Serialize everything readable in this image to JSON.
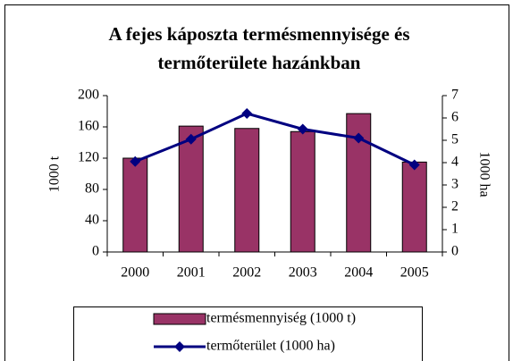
{
  "chart_data": {
    "type": "bar",
    "title": [
      "A fejes káposzta termésmennyisége és",
      "termőterülete hazánkban"
    ],
    "ylabel": "1000 t",
    "y2label": "1000 ha",
    "categories": [
      "2000",
      "2001",
      "2002",
      "2003",
      "2004",
      "2005"
    ],
    "series": [
      {
        "name": "termésmennyiség (1000 t)",
        "color": "#993366",
        "values": [
          120,
          161,
          158,
          154,
          177,
          115
        ]
      },
      {
        "name": "termőterület (1000 ha)",
        "type": "line",
        "axis": "y2",
        "color": "#000080",
        "values": [
          4.05,
          5.05,
          6.2,
          5.5,
          5.1,
          3.9
        ]
      }
    ],
    "ylim": [
      0,
      200
    ],
    "yticks": [
      0,
      40,
      80,
      120,
      160,
      200
    ],
    "y2lim": [
      0,
      7
    ],
    "y2ticks": [
      0,
      1,
      2,
      3,
      4,
      5,
      6,
      7
    ],
    "legend": "bottom"
  }
}
